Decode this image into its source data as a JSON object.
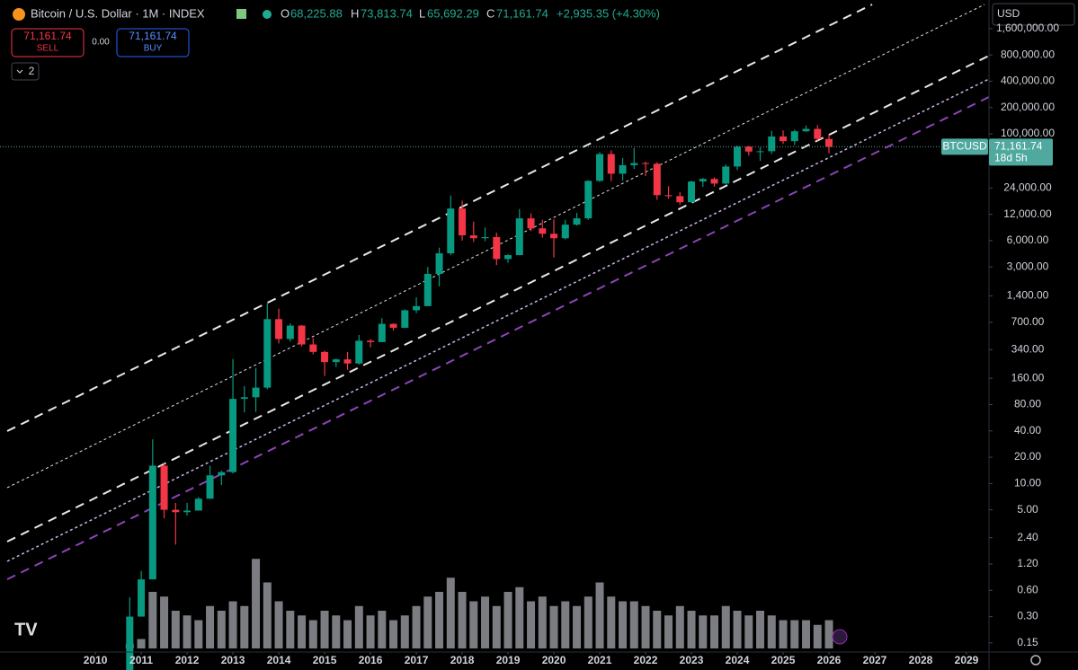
{
  "header": {
    "symbol": "Bitcoin / U.S. Dollar · 1M · INDEX",
    "open_label": "O",
    "open": "68,225.88",
    "high_label": "H",
    "high": "73,813.74",
    "low_label": "L",
    "low": "65,692.29",
    "close_label": "C",
    "close": "71,161.74",
    "change": "+2,935.35 (+4.30%)"
  },
  "trading": {
    "sell": "71,161.74",
    "sell_label": "SELL",
    "spread": "0.00",
    "buy": "71,161.74",
    "buy_label": "BUY"
  },
  "indicators_count": "2",
  "currency": "USD",
  "price_tag": {
    "symbol": "BTCUSD",
    "price": "71,161.74",
    "countdown": "18d 5h"
  },
  "chart_data": {
    "type": "candlestick",
    "log_scale": true,
    "up_color": "#089981",
    "down_color": "#f23645",
    "volume_color": "#9a9ca3",
    "x": [
      2010.75,
      2011,
      2011.25,
      2011.5,
      2011.75,
      2012,
      2012.25,
      2012.5,
      2012.75,
      2013,
      2013.25,
      2013.5,
      2013.75,
      2014,
      2014.25,
      2014.5,
      2014.75,
      2015,
      2015.25,
      2015.5,
      2015.75,
      2016,
      2016.25,
      2016.5,
      2016.75,
      2017,
      2017.25,
      2017.5,
      2017.75,
      2018,
      2018.25,
      2018.5,
      2018.75,
      2019,
      2019.25,
      2019.5,
      2019.75,
      2020,
      2020.25,
      2020.5,
      2020.75,
      2021,
      2021.25,
      2021.5,
      2021.75,
      2022,
      2022.25,
      2022.5,
      2022.75,
      2023,
      2023.25,
      2023.5,
      2023.75,
      2024,
      2024.25,
      2024.5,
      2024.75,
      2025,
      2025.25,
      2025.5,
      2025.75,
      2026
    ],
    "open": [
      0.06,
      0.3,
      0.8,
      16,
      5,
      4.7,
      4.9,
      6.7,
      12.4,
      13.5,
      93,
      97,
      125,
      760,
      450,
      640,
      390,
      320,
      245,
      263,
      236,
      430,
      415,
      670,
      605,
      960,
      1070,
      2500,
      4300,
      14000,
      6900,
      6400,
      6600,
      3700,
      4100,
      10800,
      8300,
      7200,
      6400,
      9150,
      10800,
      29000,
      58800,
      35000,
      43800,
      46300,
      45500,
      19900,
      19400,
      16500,
      28500,
      30500,
      27000,
      42300,
      71300,
      62700,
      63300,
      93400,
      82500,
      107100,
      114000,
      87500
    ],
    "high": [
      0.5,
      1.0,
      32,
      17,
      6,
      6,
      7,
      16,
      14,
      266,
      130,
      210,
      1160,
      1000,
      680,
      650,
      460,
      330,
      270,
      320,
      500,
      450,
      780,
      680,
      980,
      1350,
      3000,
      5000,
      19700,
      17200,
      9900,
      8500,
      7400,
      4200,
      13800,
      12300,
      10400,
      10500,
      10400,
      12470,
      29300,
      61800,
      64800,
      52900,
      69000,
      48200,
      47400,
      25200,
      21500,
      29200,
      31400,
      31800,
      44700,
      73800,
      72800,
      70000,
      108300,
      109600,
      111900,
      124400,
      126100,
      97900
    ],
    "low": [
      0.05,
      0.3,
      0.8,
      4,
      2,
      4.3,
      4.9,
      6.7,
      9.6,
      13,
      65,
      66,
      120,
      400,
      420,
      370,
      300,
      170,
      215,
      200,
      230,
      360,
      415,
      560,
      600,
      890,
      1070,
      1800,
      4100,
      6000,
      5800,
      5900,
      3150,
      3350,
      4100,
      7700,
      6500,
      3850,
      6200,
      8900,
      10400,
      28100,
      28800,
      29300,
      39600,
      32900,
      17600,
      18100,
      15500,
      16500,
      24800,
      24900,
      26500,
      38500,
      56500,
      49000,
      58900,
      76600,
      74400,
      105300,
      84000,
      60000
    ],
    "close": [
      0.3,
      0.8,
      16,
      5,
      4.7,
      4.9,
      6.7,
      12.4,
      13.5,
      93,
      97,
      125,
      760,
      450,
      640,
      390,
      320,
      245,
      263,
      236,
      430,
      415,
      670,
      605,
      960,
      1070,
      2500,
      4300,
      14000,
      6900,
      6400,
      6600,
      3700,
      4100,
      10800,
      8300,
      7200,
      6400,
      9150,
      10800,
      29000,
      58800,
      35000,
      43800,
      46300,
      45500,
      19900,
      19400,
      16500,
      28500,
      30500,
      27000,
      42300,
      71300,
      62700,
      63300,
      93400,
      82500,
      107100,
      114000,
      87500,
      71161.74
    ],
    "volume": [
      5,
      10,
      60,
      55,
      40,
      35,
      30,
      45,
      40,
      50,
      45,
      95,
      70,
      50,
      40,
      35,
      30,
      40,
      35,
      30,
      45,
      35,
      40,
      30,
      35,
      45,
      55,
      60,
      75,
      60,
      50,
      55,
      45,
      60,
      65,
      50,
      55,
      45,
      50,
      45,
      55,
      70,
      55,
      50,
      50,
      45,
      40,
      35,
      45,
      40,
      35,
      35,
      45,
      40,
      35,
      40,
      35,
      30,
      30,
      30,
      25,
      30
    ],
    "xlim": [
      2007.92,
      2029.49
    ],
    "xticks": [
      2010,
      2011,
      2012,
      2013,
      2014,
      2015,
      2016,
      2017,
      2018,
      2019,
      2020,
      2021,
      2022,
      2023,
      2024,
      2025,
      2026,
      2027,
      2028,
      2029
    ],
    "ylim": [
      0.118,
      3400000
    ],
    "yticks": [
      {
        "value": 0.15,
        "label": "0.15"
      },
      {
        "value": 0.3,
        "label": "0.30"
      },
      {
        "value": 0.6,
        "label": "0.60"
      },
      {
        "value": 1.2,
        "label": "1.20"
      },
      {
        "value": 2.4,
        "label": "2.40"
      },
      {
        "value": 5,
        "label": "5.00"
      },
      {
        "value": 10,
        "label": "10.00"
      },
      {
        "value": 20,
        "label": "20.00"
      },
      {
        "value": 40,
        "label": "40.00"
      },
      {
        "value": 80,
        "label": "80.00"
      },
      {
        "value": 160,
        "label": "160.00"
      },
      {
        "value": 340,
        "label": "340.00"
      },
      {
        "value": 700,
        "label": "700.00"
      },
      {
        "value": 1400,
        "label": "1,400.00"
      },
      {
        "value": 3000,
        "label": "3,000.00"
      },
      {
        "value": 6000,
        "label": "6,000.00"
      },
      {
        "value": 12000,
        "label": "12,000.00"
      },
      {
        "value": 24000,
        "label": "24,000.00"
      },
      {
        "value": 100000,
        "label": "100,000.00"
      },
      {
        "value": 200000,
        "label": "200,000.00"
      },
      {
        "value": 400000,
        "label": "400,000.00"
      },
      {
        "value": 800000,
        "label": "800,000.00"
      },
      {
        "value": 1600000,
        "label": "1,600,000.00"
      }
    ]
  }
}
